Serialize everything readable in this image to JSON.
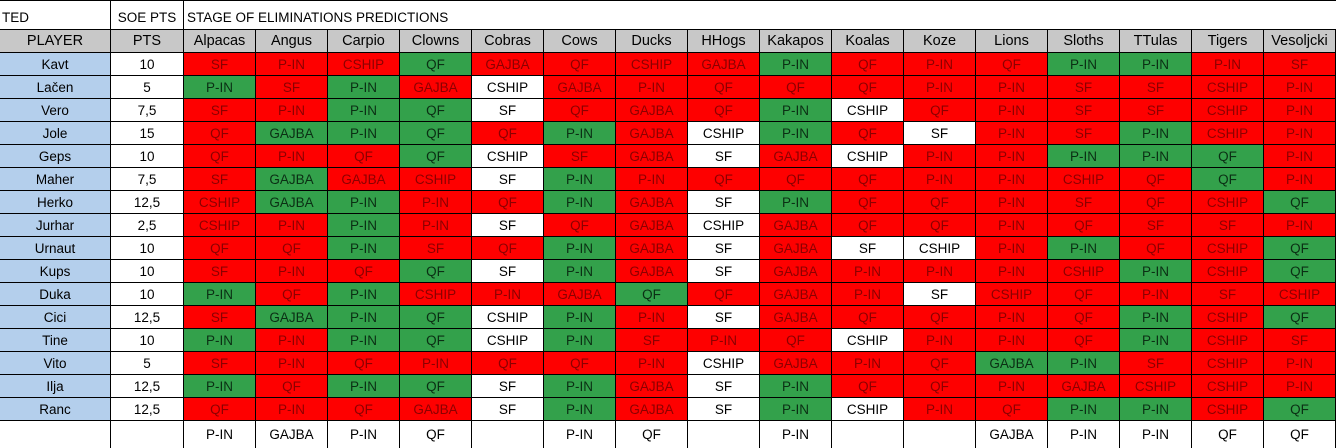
{
  "header": {
    "corner_label": "TED",
    "soe_label": "SOE PTS",
    "title": "STAGE OF ELIMINATIONS PREDICTIONS"
  },
  "columns": {
    "player": "PLAYER",
    "pts": "PTS",
    "teams": [
      "Alpacas",
      "Angus",
      "Carpio",
      "Clowns",
      "Cobras",
      "Cows",
      "Ducks",
      "HHogs",
      "Kakapos",
      "Koalas",
      "Koze",
      "Lions",
      "Sloths",
      "TTulas",
      "Tigers",
      "Vesoljcki"
    ]
  },
  "rows": [
    {
      "player": "Kavt",
      "pts": "10",
      "picks": [
        "SF",
        "P-IN",
        "CSHIP",
        "QF",
        "GAJBA",
        "QF",
        "CSHIP",
        "GAJBA",
        "P-IN",
        "QF",
        "P-IN",
        "QF",
        "P-IN",
        "P-IN",
        "P-IN",
        "SF"
      ],
      "colors": [
        "red",
        "red",
        "red",
        "green",
        "red",
        "red",
        "red",
        "red",
        "green",
        "red",
        "red",
        "red",
        "green",
        "green",
        "red",
        "red"
      ]
    },
    {
      "player": "Lačen",
      "pts": "5",
      "picks": [
        "P-IN",
        "SF",
        "P-IN",
        "GAJBA",
        "CSHIP",
        "GAJBA",
        "P-IN",
        "QF",
        "QF",
        "QF",
        "P-IN",
        "P-IN",
        "SF",
        "SF",
        "CSHIP",
        "P-IN"
      ],
      "colors": [
        "green",
        "red",
        "green",
        "red",
        "white",
        "red",
        "red",
        "red",
        "red",
        "red",
        "red",
        "red",
        "red",
        "red",
        "red",
        "red"
      ]
    },
    {
      "player": "Vero",
      "pts": "7,5",
      "picks": [
        "SF",
        "P-IN",
        "P-IN",
        "QF",
        "SF",
        "QF",
        "GAJBA",
        "QF",
        "P-IN",
        "CSHIP",
        "QF",
        "P-IN",
        "SF",
        "SF",
        "CSHIP",
        "P-IN"
      ],
      "colors": [
        "red",
        "red",
        "green",
        "green",
        "white",
        "red",
        "red",
        "red",
        "green",
        "white",
        "red",
        "red",
        "red",
        "red",
        "red",
        "red"
      ]
    },
    {
      "player": "Jole",
      "pts": "15",
      "picks": [
        "QF",
        "GAJBA",
        "P-IN",
        "QF",
        "QF",
        "P-IN",
        "GAJBA",
        "CSHIP",
        "P-IN",
        "QF",
        "SF",
        "P-IN",
        "SF",
        "P-IN",
        "CSHIP",
        "P-IN"
      ],
      "colors": [
        "red",
        "green",
        "green",
        "green",
        "red",
        "green",
        "red",
        "white",
        "green",
        "red",
        "white",
        "red",
        "red",
        "green",
        "red",
        "red"
      ]
    },
    {
      "player": "Geps",
      "pts": "10",
      "picks": [
        "QF",
        "P-IN",
        "QF",
        "QF",
        "CSHIP",
        "SF",
        "GAJBA",
        "SF",
        "GAJBA",
        "CSHIP",
        "P-IN",
        "P-IN",
        "P-IN",
        "P-IN",
        "QF",
        "P-IN"
      ],
      "colors": [
        "red",
        "red",
        "red",
        "green",
        "white",
        "red",
        "red",
        "white",
        "red",
        "white",
        "red",
        "red",
        "green",
        "green",
        "green",
        "red"
      ]
    },
    {
      "player": "Maher",
      "pts": "7,5",
      "picks": [
        "SF",
        "GAJBA",
        "GAJBA",
        "CSHIP",
        "SF",
        "P-IN",
        "P-IN",
        "QF",
        "QF",
        "QF",
        "P-IN",
        "P-IN",
        "CSHIP",
        "QF",
        "QF",
        "P-IN"
      ],
      "colors": [
        "red",
        "green",
        "red",
        "red",
        "white",
        "green",
        "red",
        "red",
        "red",
        "red",
        "red",
        "red",
        "red",
        "red",
        "green",
        "red"
      ]
    },
    {
      "player": "Herko",
      "pts": "12,5",
      "picks": [
        "CSHIP",
        "GAJBA",
        "P-IN",
        "P-IN",
        "QF",
        "P-IN",
        "GAJBA",
        "SF",
        "P-IN",
        "QF",
        "QF",
        "P-IN",
        "SF",
        "QF",
        "CSHIP",
        "QF"
      ],
      "colors": [
        "red",
        "green",
        "green",
        "red",
        "red",
        "green",
        "red",
        "white",
        "green",
        "red",
        "red",
        "red",
        "red",
        "red",
        "red",
        "green"
      ]
    },
    {
      "player": "Jurhar",
      "pts": "2,5",
      "picks": [
        "CSHIP",
        "P-IN",
        "P-IN",
        "P-IN",
        "SF",
        "QF",
        "GAJBA",
        "CSHIP",
        "GAJBA",
        "QF",
        "QF",
        "P-IN",
        "QF",
        "SF",
        "SF",
        "P-IN"
      ],
      "colors": [
        "red",
        "red",
        "green",
        "red",
        "white",
        "red",
        "red",
        "white",
        "red",
        "red",
        "red",
        "red",
        "red",
        "red",
        "red",
        "red"
      ]
    },
    {
      "player": "Urnaut",
      "pts": "10",
      "picks": [
        "QF",
        "QF",
        "P-IN",
        "SF",
        "QF",
        "P-IN",
        "GAJBA",
        "SF",
        "GAJBA",
        "SF",
        "CSHIP",
        "P-IN",
        "P-IN",
        "QF",
        "CSHIP",
        "QF"
      ],
      "colors": [
        "red",
        "red",
        "green",
        "red",
        "red",
        "green",
        "red",
        "white",
        "red",
        "white",
        "white",
        "red",
        "green",
        "red",
        "red",
        "green"
      ]
    },
    {
      "player": "Kups",
      "pts": "10",
      "picks": [
        "SF",
        "P-IN",
        "QF",
        "QF",
        "SF",
        "P-IN",
        "GAJBA",
        "SF",
        "GAJBA",
        "P-IN",
        "P-IN",
        "P-IN",
        "CSHIP",
        "P-IN",
        "CSHIP",
        "QF"
      ],
      "colors": [
        "red",
        "red",
        "red",
        "green",
        "white",
        "green",
        "red",
        "white",
        "red",
        "red",
        "red",
        "red",
        "red",
        "green",
        "red",
        "green"
      ]
    },
    {
      "player": "Duka",
      "pts": "10",
      "picks": [
        "P-IN",
        "QF",
        "P-IN",
        "CSHIP",
        "P-IN",
        "GAJBA",
        "QF",
        "QF",
        "GAJBA",
        "P-IN",
        "SF",
        "CSHIP",
        "QF",
        "P-IN",
        "SF",
        "CSHIP"
      ],
      "colors": [
        "green",
        "red",
        "green",
        "red",
        "red",
        "red",
        "green",
        "red",
        "red",
        "red",
        "white",
        "red",
        "red",
        "red",
        "red",
        "red"
      ]
    },
    {
      "player": "Cici",
      "pts": "12,5",
      "picks": [
        "SF",
        "GAJBA",
        "P-IN",
        "QF",
        "CSHIP",
        "P-IN",
        "P-IN",
        "SF",
        "GAJBA",
        "QF",
        "QF",
        "P-IN",
        "QF",
        "P-IN",
        "CSHIP",
        "QF"
      ],
      "colors": [
        "red",
        "green",
        "green",
        "green",
        "white",
        "green",
        "red",
        "white",
        "red",
        "red",
        "red",
        "red",
        "red",
        "green",
        "red",
        "green"
      ]
    },
    {
      "player": "Tine",
      "pts": "10",
      "picks": [
        "P-IN",
        "P-IN",
        "P-IN",
        "QF",
        "CSHIP",
        "P-IN",
        "SF",
        "P-IN",
        "QF",
        "CSHIP",
        "P-IN",
        "P-IN",
        "QF",
        "P-IN",
        "CSHIP",
        "SF"
      ],
      "colors": [
        "green",
        "red",
        "green",
        "green",
        "white",
        "green",
        "red",
        "red",
        "red",
        "white",
        "red",
        "red",
        "red",
        "green",
        "red",
        "red"
      ]
    },
    {
      "player": "Vito",
      "pts": "5",
      "picks": [
        "SF",
        "P-IN",
        "QF",
        "P-IN",
        "QF",
        "QF",
        "P-IN",
        "CSHIP",
        "GAJBA",
        "P-IN",
        "QF",
        "GAJBA",
        "P-IN",
        "SF",
        "CSHIP",
        "P-IN"
      ],
      "colors": [
        "red",
        "red",
        "red",
        "red",
        "red",
        "red",
        "red",
        "white",
        "red",
        "red",
        "red",
        "green",
        "green",
        "red",
        "red",
        "red"
      ]
    },
    {
      "player": "Ilja",
      "pts": "12,5",
      "picks": [
        "P-IN",
        "QF",
        "P-IN",
        "QF",
        "SF",
        "P-IN",
        "GAJBA",
        "SF",
        "P-IN",
        "QF",
        "QF",
        "P-IN",
        "GAJBA",
        "CSHIP",
        "CSHIP",
        "P-IN"
      ],
      "colors": [
        "green",
        "red",
        "green",
        "green",
        "white",
        "green",
        "red",
        "white",
        "green",
        "red",
        "red",
        "red",
        "red",
        "red",
        "red",
        "red"
      ]
    },
    {
      "player": "Ranc",
      "pts": "12,5",
      "picks": [
        "QF",
        "P-IN",
        "QF",
        "GAJBA",
        "SF",
        "P-IN",
        "GAJBA",
        "SF",
        "P-IN",
        "CSHIP",
        "P-IN",
        "QF",
        "P-IN",
        "P-IN",
        "CSHIP",
        "QF"
      ],
      "colors": [
        "red",
        "red",
        "red",
        "red",
        "white",
        "green",
        "red",
        "white",
        "green",
        "white",
        "red",
        "red",
        "green",
        "green",
        "red",
        "green"
      ]
    }
  ],
  "footer": {
    "results": [
      "P-IN",
      "GAJBA",
      "P-IN",
      "QF",
      "",
      "P-IN",
      "QF",
      "",
      "P-IN",
      "",
      "",
      "GAJBA",
      "P-IN",
      "P-IN",
      "QF",
      "QF"
    ]
  },
  "colors": {
    "red": "#fe0000",
    "green": "#33a14b",
    "white": "#ffffff",
    "player_bg": "#b4cfec",
    "header_bg": "#c8c8c8"
  }
}
